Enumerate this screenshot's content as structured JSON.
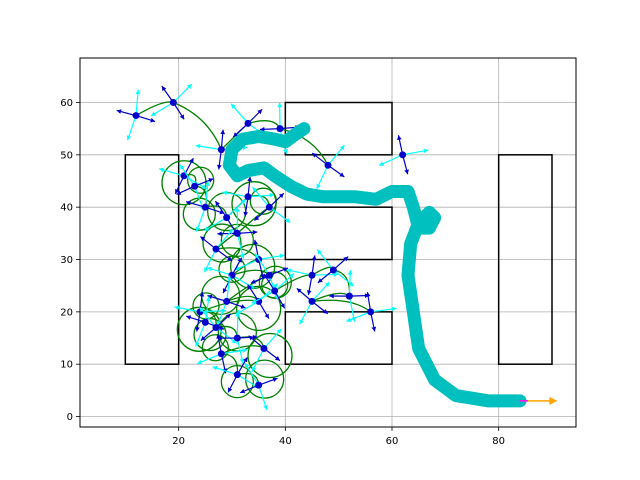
{
  "chart_data": {
    "type": "scatter",
    "title": "",
    "xlabel": "",
    "ylabel": "",
    "xlim": [
      1.5,
      94.5
    ],
    "ylim": [
      -2,
      68.5
    ],
    "grid": true,
    "xticks": [
      20,
      40,
      60,
      80
    ],
    "yticks": [
      0,
      10,
      20,
      30,
      40,
      50,
      60
    ],
    "obstacles": [
      {
        "x": [
          10,
          20
        ],
        "y": [
          10,
          50
        ]
      },
      {
        "x": [
          40,
          60
        ],
        "y": [
          50,
          60
        ]
      },
      {
        "x": [
          40,
          60
        ],
        "y": [
          30,
          40
        ]
      },
      {
        "x": [
          40,
          60
        ],
        "y": [
          10,
          20
        ]
      },
      {
        "x": [
          80,
          90
        ],
        "y": [
          10,
          50
        ]
      }
    ],
    "path": {
      "color": "#00bfbf",
      "points": [
        [
          84,
          3
        ],
        [
          78,
          3
        ],
        [
          72,
          4
        ],
        [
          68,
          7
        ],
        [
          65,
          13
        ],
        [
          64,
          20
        ],
        [
          63,
          27
        ],
        [
          63.5,
          33
        ],
        [
          65,
          37
        ],
        [
          67,
          39
        ],
        [
          68,
          38
        ],
        [
          67,
          36
        ],
        [
          65,
          36
        ],
        [
          64,
          40
        ],
        [
          63,
          43
        ],
        [
          60,
          43
        ],
        [
          57,
          41.5
        ],
        [
          53,
          42
        ],
        [
          50,
          42
        ],
        [
          47,
          42
        ],
        [
          44,
          42.5
        ],
        [
          41,
          44
        ],
        [
          38,
          46
        ],
        [
          36,
          47.5
        ],
        [
          33,
          47
        ],
        [
          31,
          46
        ],
        [
          29.5,
          48
        ],
        [
          30,
          51
        ],
        [
          32,
          53
        ],
        [
          35,
          53.5
        ],
        [
          38,
          53
        ],
        [
          40,
          52.5
        ],
        [
          42,
          54
        ],
        [
          43.5,
          55
        ]
      ]
    },
    "start": {
      "x": 84,
      "y": 3,
      "heading_end": [
        91,
        3
      ]
    },
    "tree_nodes": [
      [
        12,
        57.5
      ],
      [
        19,
        60
      ],
      [
        28,
        51
      ],
      [
        33,
        56
      ],
      [
        39,
        55
      ],
      [
        48,
        48
      ],
      [
        62,
        50
      ],
      [
        21,
        46
      ],
      [
        23,
        44
      ],
      [
        25,
        40
      ],
      [
        29,
        38
      ],
      [
        33,
        42
      ],
      [
        37,
        40
      ],
      [
        31,
        35
      ],
      [
        27,
        32
      ],
      [
        35,
        30
      ],
      [
        30,
        27
      ],
      [
        37,
        27
      ],
      [
        29,
        22
      ],
      [
        35,
        22
      ],
      [
        24,
        20
      ],
      [
        27,
        17
      ],
      [
        31,
        15
      ],
      [
        36,
        13
      ],
      [
        28,
        12
      ],
      [
        31,
        8
      ],
      [
        35,
        6
      ],
      [
        25,
        18
      ],
      [
        38,
        24
      ],
      [
        45,
        27
      ],
      [
        49,
        28
      ],
      [
        52,
        23
      ],
      [
        45,
        22
      ],
      [
        56,
        20
      ]
    ]
  }
}
